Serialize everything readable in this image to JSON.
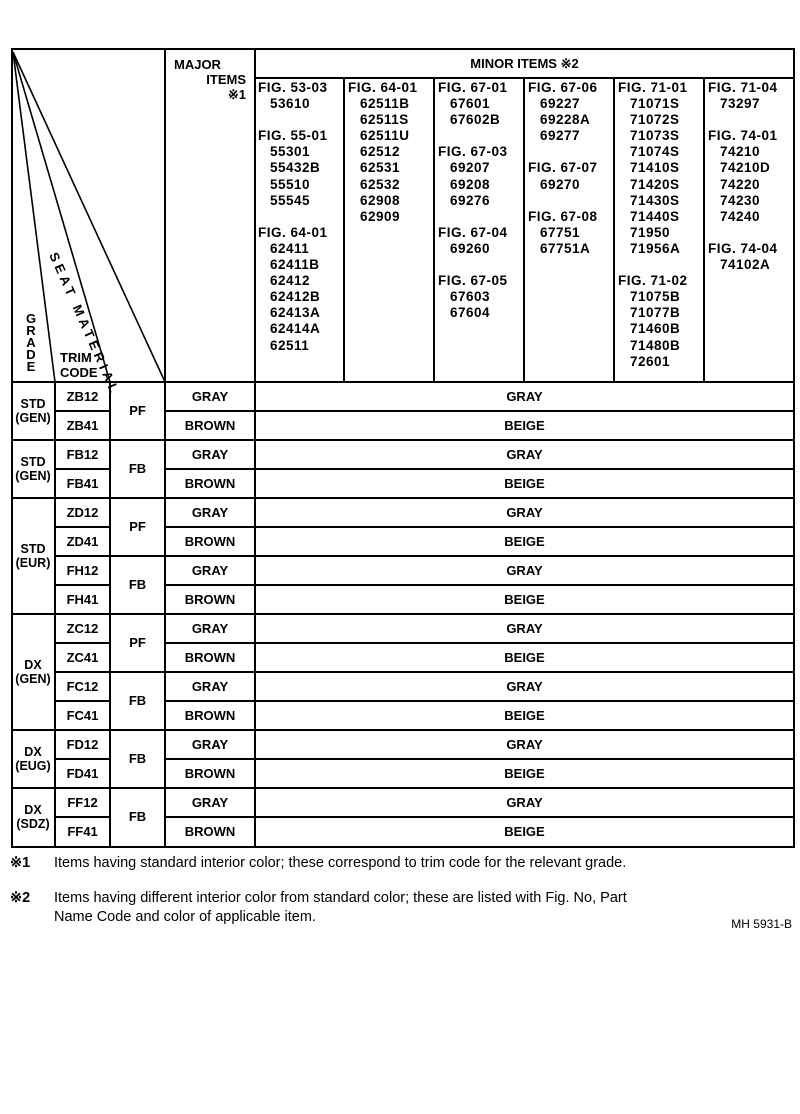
{
  "header": {
    "grade": "GRADE",
    "trim_code_1": "TRIM",
    "trim_code_2": "CODE",
    "seat_material": "SEAT MATERIAL",
    "major_1": "MAJOR",
    "major_2": "ITEMS",
    "major_3": "※1",
    "minor": "MINOR ITEMS ※2"
  },
  "minor_columns": [
    [
      "FIG. 53-03",
      "53610",
      "",
      "FIG. 55-01",
      "55301",
      "55432B",
      "55510",
      "55545",
      "",
      "FIG. 64-01",
      "62411",
      "62411B",
      "62412",
      "62412B",
      "62413A",
      "62414A",
      "62511"
    ],
    [
      "FIG. 64-01",
      "62511B",
      "62511S",
      "62511U",
      "62512",
      "62531",
      "62532",
      "62908",
      "62909"
    ],
    [
      "FIG. 67-01",
      "67601",
      "67602B",
      "",
      "FIG. 67-03",
      "69207",
      "69208",
      "69276",
      "",
      "FIG. 67-04",
      "69260",
      "",
      "FIG. 67-05",
      "67603",
      "67604"
    ],
    [
      "FIG. 67-06",
      "69227",
      "69228A",
      "69277",
      "",
      "FIG. 67-07",
      "69270",
      "",
      "FIG. 67-08",
      "67751",
      "67751A"
    ],
    [
      "FIG. 71-01",
      "71071S",
      "71072S",
      "71073S",
      "71074S",
      "71410S",
      "71420S",
      "71430S",
      "71440S",
      "71950",
      "71956A",
      "",
      "FIG. 71-02",
      "71075B",
      "71077B",
      "71460B",
      "71480B",
      "72601"
    ],
    [
      "FIG. 71-04",
      "73297",
      "",
      "FIG. 74-01",
      "74210",
      "74210D",
      "74220",
      "74230",
      "74240",
      "",
      "FIG. 74-04",
      "74102A"
    ]
  ],
  "groups": [
    {
      "grade": "STD\n(GEN)",
      "start": 0,
      "span": 2
    },
    {
      "grade": "STD\n(GEN)",
      "start": 2,
      "span": 2
    },
    {
      "grade": "STD\n(EUR)",
      "start": 4,
      "span": 4
    },
    {
      "grade": "DX\n(GEN)",
      "start": 8,
      "span": 4
    },
    {
      "grade": "DX\n(EUG)",
      "start": 12,
      "span": 2
    },
    {
      "grade": "DX\n(SDZ)",
      "start": 14,
      "span": 2
    }
  ],
  "materials": [
    {
      "material": "PF",
      "start": 0
    },
    {
      "material": "FB",
      "start": 2
    },
    {
      "material": "PF",
      "start": 4
    },
    {
      "material": "FB",
      "start": 6
    },
    {
      "material": "PF",
      "start": 8
    },
    {
      "material": "FB",
      "start": 10
    },
    {
      "material": "FB",
      "start": 12
    },
    {
      "material": "FB",
      "start": 14
    }
  ],
  "rows": [
    {
      "trim": "ZB12",
      "major": "GRAY",
      "minor": "GRAY"
    },
    {
      "trim": "ZB41",
      "major": "BROWN",
      "minor": "BEIGE"
    },
    {
      "trim": "FB12",
      "major": "GRAY",
      "minor": "GRAY"
    },
    {
      "trim": "FB41",
      "major": "BROWN",
      "minor": "BEIGE"
    },
    {
      "trim": "ZD12",
      "major": "GRAY",
      "minor": "GRAY"
    },
    {
      "trim": "ZD41",
      "major": "BROWN",
      "minor": "BEIGE"
    },
    {
      "trim": "FH12",
      "major": "GRAY",
      "minor": "GRAY"
    },
    {
      "trim": "FH41",
      "major": "BROWN",
      "minor": "BEIGE"
    },
    {
      "trim": "ZC12",
      "major": "GRAY",
      "minor": "GRAY"
    },
    {
      "trim": "ZC41",
      "major": "BROWN",
      "minor": "BEIGE"
    },
    {
      "trim": "FC12",
      "major": "GRAY",
      "minor": "GRAY"
    },
    {
      "trim": "FC41",
      "major": "BROWN",
      "minor": "BEIGE"
    },
    {
      "trim": "FD12",
      "major": "GRAY",
      "minor": "GRAY"
    },
    {
      "trim": "FD41",
      "major": "BROWN",
      "minor": "BEIGE"
    },
    {
      "trim": "FF12",
      "major": "GRAY",
      "minor": "GRAY"
    },
    {
      "trim": "FF41",
      "major": "BROWN",
      "minor": "BEIGE"
    }
  ],
  "notes": [
    {
      "mark": "※1",
      "text": "Items having standard interior color; these correspond to trim code for the relevant grade."
    },
    {
      "mark": "※2",
      "text": "Items having different interior color from standard color; these are listed with Fig. No, Part",
      "text2": "Name Code and color of applicable item."
    }
  ],
  "figure_code": "MH 5931-B"
}
